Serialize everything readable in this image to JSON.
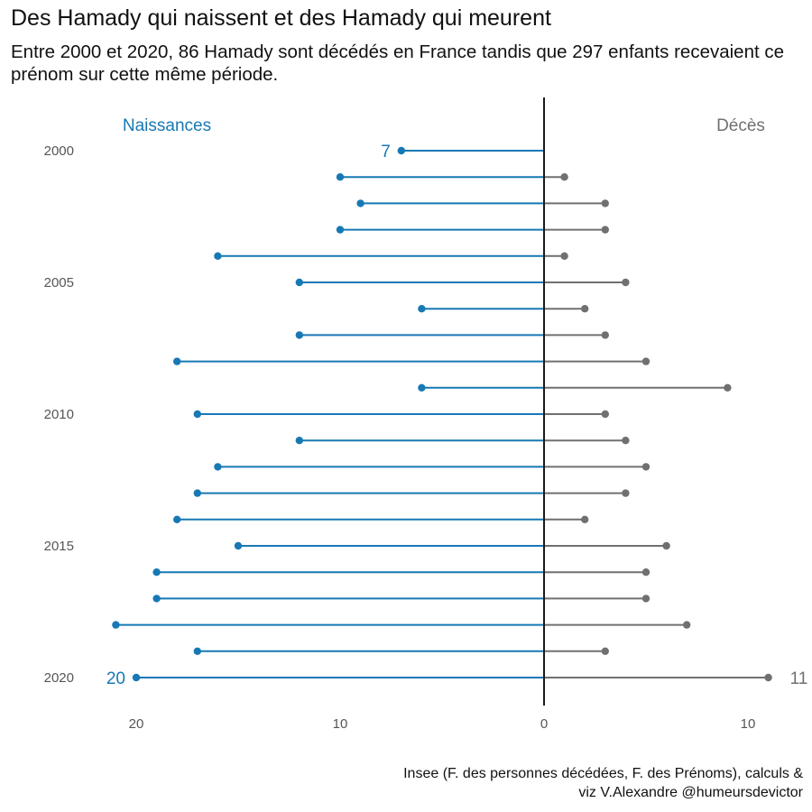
{
  "title": "Des Hamady qui naissent et des Hamady qui meurent",
  "subtitle": "Entre 2000 et 2020, 86 Hamady sont décédés en France tandis que 297 enfants recevaient ce prénom sur cette même période.",
  "caption": {
    "line1": "Insee (F. des personnes décédées, F. des Prénoms), calculs &",
    "line2": "viz V.Alexandre @humeursdevictor"
  },
  "chart_data": {
    "type": "lollipop",
    "colors": {
      "births": "#1779b4",
      "deaths": "#707070",
      "axis": "#1a1a1a"
    },
    "panel_labels": {
      "births": "Naissances",
      "deaths": "Décès"
    },
    "years": [
      2000,
      2001,
      2002,
      2003,
      2004,
      2005,
      2006,
      2007,
      2008,
      2009,
      2010,
      2011,
      2012,
      2013,
      2014,
      2015,
      2016,
      2017,
      2018,
      2019,
      2020
    ],
    "y_tick_years": [
      "2000",
      "2005",
      "2010",
      "2015",
      "2020"
    ],
    "series": [
      {
        "key": "births",
        "name": "Naissances",
        "values": [
          7,
          10,
          9,
          10,
          16,
          12,
          6,
          12,
          18,
          6,
          17,
          12,
          16,
          17,
          18,
          15,
          19,
          19,
          21,
          17,
          20
        ]
      },
      {
        "key": "deaths",
        "name": "Décès",
        "values": [
          0,
          1,
          3,
          3,
          1,
          4,
          2,
          3,
          5,
          9,
          3,
          4,
          5,
          4,
          2,
          6,
          5,
          5,
          7,
          3,
          11
        ]
      }
    ],
    "x_ticks": [
      {
        "value": -20,
        "label": "20"
      },
      {
        "value": -10,
        "label": "10"
      },
      {
        "value": 0,
        "label": "0"
      },
      {
        "value": 10,
        "label": "10"
      }
    ],
    "xlim": [
      -21.5,
      12.5
    ],
    "value_labels": [
      {
        "series": "births",
        "year": 2000,
        "text": "7"
      },
      {
        "series": "births",
        "year": 2020,
        "text": "20"
      },
      {
        "series": "deaths",
        "year": 2020,
        "text": "11"
      }
    ]
  }
}
